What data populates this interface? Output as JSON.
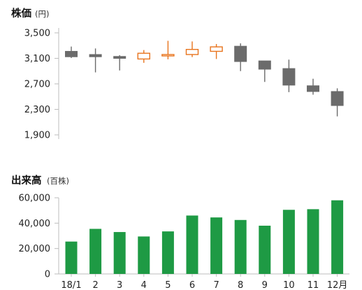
{
  "chart_data": [
    {
      "type": "candlestick",
      "title": "株価",
      "unit": "(円)",
      "y_ticks": [
        "3,500",
        "3,100",
        "2,700",
        "2,300",
        "1,900"
      ],
      "ylim": [
        1900,
        3500
      ],
      "grid": false,
      "up_color": "#e8731c",
      "down_color": "#6b6b6b",
      "categories": [
        "18/1",
        "2",
        "3",
        "4",
        "5",
        "6",
        "7",
        "8",
        "9",
        "10",
        "11",
        "12月"
      ],
      "series": [
        {
          "open": 3210,
          "close": 3125,
          "high": 3285,
          "low": 3105
        },
        {
          "open": 3160,
          "close": 3125,
          "high": 3255,
          "low": 2880
        },
        {
          "open": 3130,
          "close": 3100,
          "high": 3150,
          "low": 2910
        },
        {
          "open": 3090,
          "close": 3180,
          "high": 3230,
          "low": 3030
        },
        {
          "open": 3140,
          "close": 3160,
          "high": 3375,
          "low": 3085
        },
        {
          "open": 3160,
          "close": 3240,
          "high": 3365,
          "low": 3120
        },
        {
          "open": 3210,
          "close": 3280,
          "high": 3325,
          "low": 3090
        },
        {
          "open": 3290,
          "close": 3050,
          "high": 3335,
          "low": 2900
        },
        {
          "open": 3060,
          "close": 2930,
          "high": 3060,
          "low": 2730
        },
        {
          "open": 2940,
          "close": 2680,
          "high": 3080,
          "low": 2570
        },
        {
          "open": 2670,
          "close": 2580,
          "high": 2780,
          "low": 2530
        },
        {
          "open": 2580,
          "close": 2360,
          "high": 2630,
          "low": 2190
        }
      ]
    },
    {
      "type": "bar",
      "title": "出来高",
      "unit": "(百株)",
      "y_ticks": [
        "60,000",
        "40,000",
        "20,000",
        "0"
      ],
      "ylim": [
        0,
        60000
      ],
      "grid": false,
      "bar_color": "#1e9a44",
      "categories": [
        "18/1",
        "2",
        "3",
        "4",
        "5",
        "6",
        "7",
        "8",
        "9",
        "10",
        "11",
        "12月"
      ],
      "values": [
        25500,
        35500,
        33000,
        29500,
        33500,
        46000,
        44500,
        42500,
        38000,
        50500,
        51000,
        58000
      ]
    }
  ]
}
